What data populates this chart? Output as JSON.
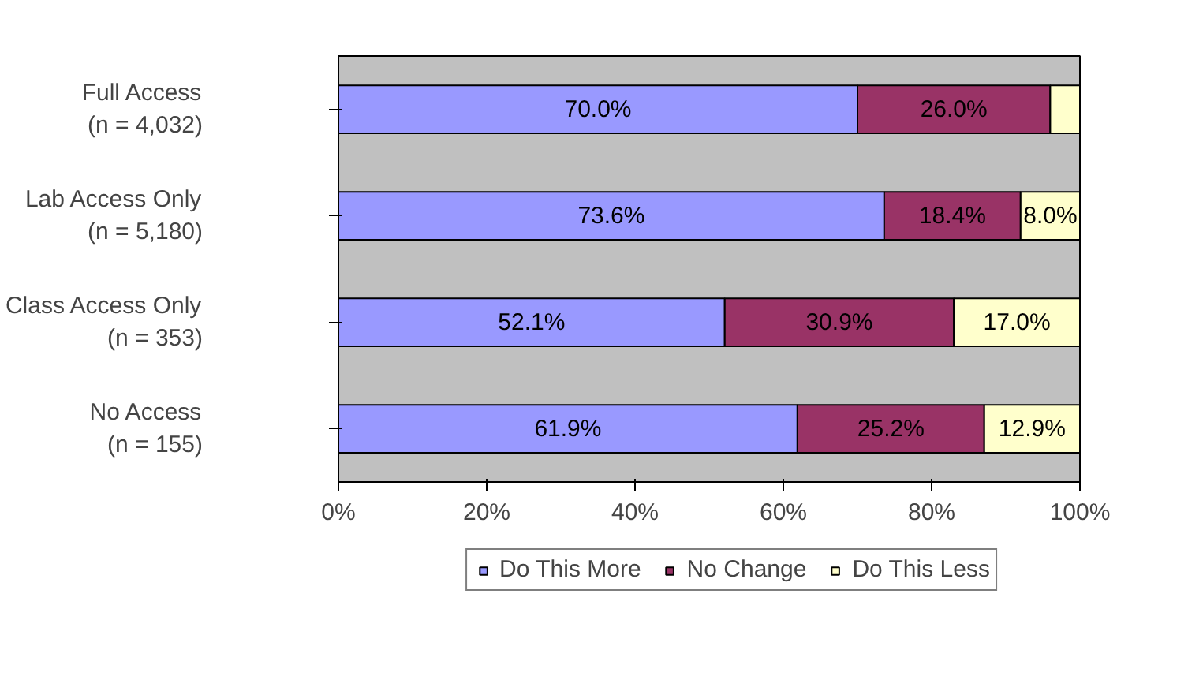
{
  "chart_data": {
    "type": "bar",
    "orientation": "horizontal",
    "stacked": true,
    "categories": [
      "Full Access\n(n = 4,032)",
      "Lab Access Only\n(n = 5,180)",
      "Class Access Only\n(n = 353)",
      "No Access\n(n = 155)"
    ],
    "series": [
      {
        "name": "Do This More",
        "color": "#9999ff",
        "values": [
          70.0,
          73.6,
          52.1,
          61.9
        ],
        "value_labels": [
          "70.0%",
          "73.6%",
          "52.1%",
          "61.9%"
        ]
      },
      {
        "name": "No Change",
        "color": "#993366",
        "values": [
          26.0,
          18.4,
          30.9,
          25.2
        ],
        "value_labels": [
          "26.0%",
          "18.4%",
          "30.9%",
          "25.2%"
        ]
      },
      {
        "name": "Do This Less",
        "color": "#ffffcc",
        "values": [
          4.0,
          8.0,
          17.0,
          12.9
        ],
        "value_labels": [
          null,
          "8.0%",
          "17.0%",
          "12.9%"
        ]
      }
    ],
    "xlim": [
      0,
      100
    ],
    "xticks": [
      {
        "value": 0,
        "label": "0%"
      },
      {
        "value": 20,
        "label": "20%"
      },
      {
        "value": 40,
        "label": "40%"
      },
      {
        "value": 60,
        "label": "60%"
      },
      {
        "value": 80,
        "label": "80%"
      },
      {
        "value": 100,
        "label": "100%"
      }
    ],
    "grid": false,
    "legend": "bottom"
  }
}
